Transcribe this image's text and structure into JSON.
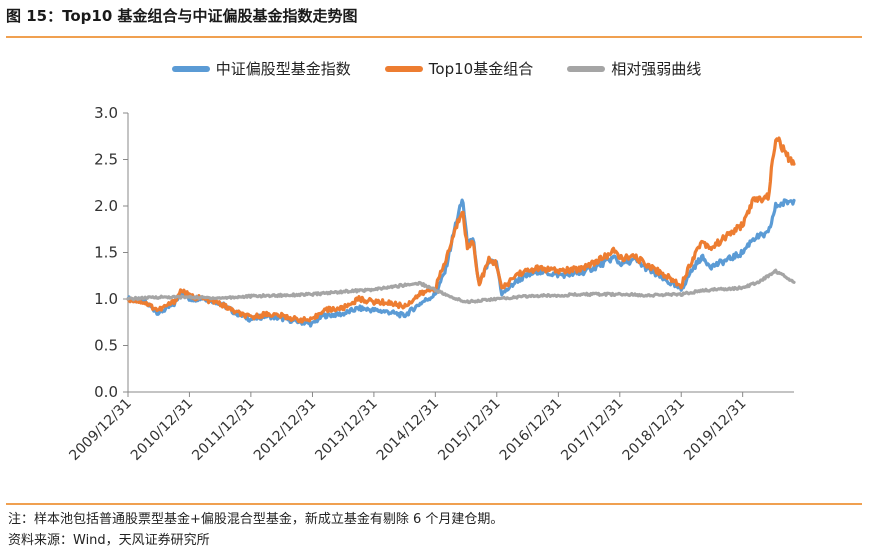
{
  "header": {
    "title": "图 15：Top10 基金组合与中证偏股基金指数走势图"
  },
  "colors": {
    "accent_rule": "#f0a050",
    "series_index": "#5b9bd5",
    "series_top10": "#ed7d31",
    "series_relative": "#a5a5a5"
  },
  "chart_data": {
    "type": "line",
    "title": "",
    "xlabel": "",
    "ylabel": "",
    "ylim": [
      0.0,
      3.0
    ],
    "yticks": [
      "0.0",
      "0.5",
      "1.0",
      "1.5",
      "2.0",
      "2.5",
      "3.0"
    ],
    "xlim": [
      "2009-12-31",
      "2020-10-31"
    ],
    "xticks": [
      "2009/12/31",
      "2010/12/31",
      "2011/12/31",
      "2012/12/31",
      "2013/12/31",
      "2014/12/31",
      "2015/12/31",
      "2016/12/31",
      "2017/12/31",
      "2018/12/31",
      "2019/12/31"
    ],
    "grid": false,
    "legend_position": "top",
    "series": [
      {
        "name": "中证偏股型基金指数",
        "color": "#5b9bd5",
        "points": [
          [
            "2009-12-31",
            1.0
          ],
          [
            "2010-03-31",
            0.98
          ],
          [
            "2010-06-30",
            0.85
          ],
          [
            "2010-09-30",
            0.94
          ],
          [
            "2010-11-15",
            1.08
          ],
          [
            "2010-12-31",
            1.0
          ],
          [
            "2011-03-31",
            1.01
          ],
          [
            "2011-06-30",
            0.96
          ],
          [
            "2011-09-30",
            0.85
          ],
          [
            "2011-12-31",
            0.78
          ],
          [
            "2012-03-31",
            0.82
          ],
          [
            "2012-06-30",
            0.79
          ],
          [
            "2012-09-30",
            0.76
          ],
          [
            "2012-12-31",
            0.73
          ],
          [
            "2013-02-28",
            0.82
          ],
          [
            "2013-06-30",
            0.84
          ],
          [
            "2013-09-30",
            0.9
          ],
          [
            "2013-12-31",
            0.88
          ],
          [
            "2014-03-31",
            0.86
          ],
          [
            "2014-06-30",
            0.82
          ],
          [
            "2014-09-30",
            0.95
          ],
          [
            "2014-12-31",
            1.05
          ],
          [
            "2015-02-28",
            1.3
          ],
          [
            "2015-04-30",
            1.8
          ],
          [
            "2015-06-12",
            2.08
          ],
          [
            "2015-07-08",
            1.6
          ],
          [
            "2015-08-15",
            1.62
          ],
          [
            "2015-09-15",
            1.15
          ],
          [
            "2015-11-15",
            1.4
          ],
          [
            "2015-12-31",
            1.38
          ],
          [
            "2016-01-31",
            1.05
          ],
          [
            "2016-04-30",
            1.2
          ],
          [
            "2016-08-31",
            1.3
          ],
          [
            "2016-12-31",
            1.26
          ],
          [
            "2017-04-30",
            1.27
          ],
          [
            "2017-08-31",
            1.36
          ],
          [
            "2017-11-30",
            1.45
          ],
          [
            "2017-12-31",
            1.38
          ],
          [
            "2018-03-31",
            1.42
          ],
          [
            "2018-06-30",
            1.3
          ],
          [
            "2018-09-30",
            1.2
          ],
          [
            "2018-12-31",
            1.1
          ],
          [
            "2019-02-28",
            1.3
          ],
          [
            "2019-04-30",
            1.45
          ],
          [
            "2019-06-30",
            1.35
          ],
          [
            "2019-09-30",
            1.42
          ],
          [
            "2019-12-31",
            1.5
          ],
          [
            "2020-02-28",
            1.65
          ],
          [
            "2020-05-31",
            1.7
          ],
          [
            "2020-07-15",
            2.0
          ],
          [
            "2020-09-30",
            2.05
          ],
          [
            "2020-10-31",
            2.06
          ]
        ]
      },
      {
        "name": "Top10基金组合",
        "color": "#ed7d31",
        "points": [
          [
            "2009-12-31",
            1.0
          ],
          [
            "2010-03-31",
            0.97
          ],
          [
            "2010-06-30",
            0.88
          ],
          [
            "2010-09-30",
            0.97
          ],
          [
            "2010-11-15",
            1.1
          ],
          [
            "2010-12-31",
            1.03
          ],
          [
            "2011-03-31",
            1.0
          ],
          [
            "2011-06-30",
            0.95
          ],
          [
            "2011-09-30",
            0.86
          ],
          [
            "2011-12-31",
            0.8
          ],
          [
            "2012-03-31",
            0.84
          ],
          [
            "2012-06-30",
            0.82
          ],
          [
            "2012-09-30",
            0.78
          ],
          [
            "2012-12-31",
            0.77
          ],
          [
            "2013-02-28",
            0.88
          ],
          [
            "2013-06-30",
            0.9
          ],
          [
            "2013-09-30",
            1.0
          ],
          [
            "2013-12-31",
            0.97
          ],
          [
            "2014-03-31",
            0.96
          ],
          [
            "2014-06-30",
            0.92
          ],
          [
            "2014-09-30",
            1.05
          ],
          [
            "2014-12-31",
            1.12
          ],
          [
            "2015-02-28",
            1.4
          ],
          [
            "2015-04-30",
            1.75
          ],
          [
            "2015-06-12",
            1.98
          ],
          [
            "2015-07-08",
            1.55
          ],
          [
            "2015-08-15",
            1.62
          ],
          [
            "2015-09-15",
            1.15
          ],
          [
            "2015-11-15",
            1.42
          ],
          [
            "2015-12-31",
            1.38
          ],
          [
            "2016-01-31",
            1.1
          ],
          [
            "2016-04-30",
            1.27
          ],
          [
            "2016-08-31",
            1.33
          ],
          [
            "2016-12-31",
            1.3
          ],
          [
            "2017-04-30",
            1.32
          ],
          [
            "2017-08-31",
            1.42
          ],
          [
            "2017-11-30",
            1.52
          ],
          [
            "2017-12-31",
            1.44
          ],
          [
            "2018-03-31",
            1.45
          ],
          [
            "2018-06-30",
            1.35
          ],
          [
            "2018-09-30",
            1.25
          ],
          [
            "2018-12-31",
            1.15
          ],
          [
            "2019-02-28",
            1.4
          ],
          [
            "2019-04-30",
            1.62
          ],
          [
            "2019-06-30",
            1.55
          ],
          [
            "2019-09-30",
            1.68
          ],
          [
            "2019-12-31",
            1.8
          ],
          [
            "2020-02-28",
            2.05
          ],
          [
            "2020-05-31",
            2.1
          ],
          [
            "2020-07-15",
            2.75
          ],
          [
            "2020-09-30",
            2.5
          ],
          [
            "2020-10-31",
            2.45
          ]
        ]
      },
      {
        "name": "相对强弱曲线",
        "color": "#a5a5a5",
        "points": [
          [
            "2009-12-31",
            1.0
          ],
          [
            "2010-06-30",
            1.02
          ],
          [
            "2010-12-31",
            1.02
          ],
          [
            "2011-06-30",
            1.01
          ],
          [
            "2011-12-31",
            1.03
          ],
          [
            "2012-06-30",
            1.04
          ],
          [
            "2012-12-31",
            1.05
          ],
          [
            "2013-06-30",
            1.08
          ],
          [
            "2013-12-31",
            1.1
          ],
          [
            "2014-06-30",
            1.15
          ],
          [
            "2014-09-30",
            1.17
          ],
          [
            "2014-12-31",
            1.1
          ],
          [
            "2015-03-31",
            1.02
          ],
          [
            "2015-06-30",
            0.97
          ],
          [
            "2015-12-31",
            1.0
          ],
          [
            "2016-06-30",
            1.03
          ],
          [
            "2016-12-31",
            1.04
          ],
          [
            "2017-06-30",
            1.05
          ],
          [
            "2017-12-31",
            1.05
          ],
          [
            "2018-06-30",
            1.04
          ],
          [
            "2018-12-31",
            1.05
          ],
          [
            "2019-03-31",
            1.08
          ],
          [
            "2019-06-30",
            1.1
          ],
          [
            "2019-12-31",
            1.12
          ],
          [
            "2020-03-31",
            1.18
          ],
          [
            "2020-07-15",
            1.3
          ],
          [
            "2020-09-30",
            1.22
          ],
          [
            "2020-10-31",
            1.18
          ]
        ]
      }
    ]
  },
  "notes": {
    "line1": "注：样本池包括普通股票型基金+偏股混合型基金，新成立基金有剔除 6 个月建仓期。",
    "line2": "资料来源：Wind，天风证券研究所"
  }
}
